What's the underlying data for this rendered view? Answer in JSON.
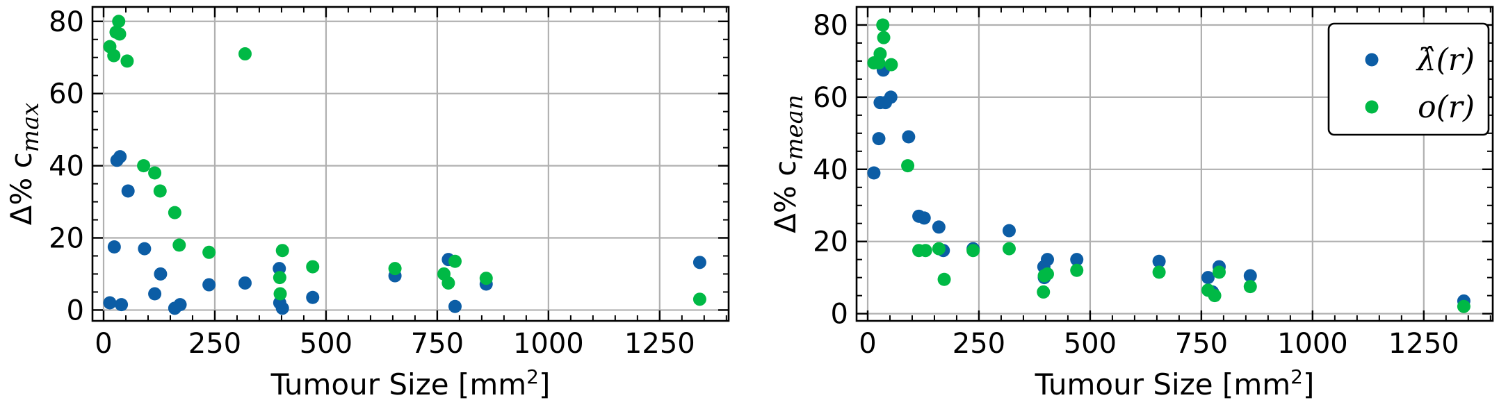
{
  "chart_data": [
    {
      "type": "scatter",
      "xlabel": "Tumour Size [mm",
      "xlabel_sup": "2",
      "xlabel_end": "]",
      "ylabel": "Δ% c",
      "ylabel_sub": "max",
      "xlim": [
        -25,
        1405
      ],
      "ylim": [
        -3,
        84
      ],
      "xticks": [
        0,
        250,
        500,
        750,
        1000,
        1250
      ],
      "yticks": [
        0,
        20,
        40,
        60,
        80
      ],
      "grid": true,
      "legend": null,
      "series": [
        {
          "color": "#0c5da5",
          "points": [
            [
              14,
              2
            ],
            [
              24,
              17.5
            ],
            [
              30,
              41.5
            ],
            [
              37,
              42.5
            ],
            [
              40,
              1.5
            ],
            [
              55,
              33
            ],
            [
              92,
              17
            ],
            [
              115,
              4.5
            ],
            [
              128,
              10
            ],
            [
              160,
              0.5
            ],
            [
              172,
              1.5
            ],
            [
              237,
              7
            ],
            [
              318,
              7.5
            ],
            [
              395,
              11.5
            ],
            [
              396,
              2
            ],
            [
              402,
              0.5
            ],
            [
              470,
              3.5
            ],
            [
              655,
              9.5
            ],
            [
              775,
              14
            ],
            [
              790,
              1
            ],
            [
              860,
              7.2
            ],
            [
              1340,
              13.2
            ]
          ]
        },
        {
          "color": "#00b945",
          "points": [
            [
              14,
              73
            ],
            [
              23,
              70.5
            ],
            [
              28,
              77
            ],
            [
              34,
              80
            ],
            [
              36,
              76.5
            ],
            [
              53,
              69
            ],
            [
              90,
              40
            ],
            [
              115,
              38
            ],
            [
              127,
              33
            ],
            [
              160,
              27
            ],
            [
              170,
              18
            ],
            [
              237,
              16
            ],
            [
              318,
              71
            ],
            [
              396,
              9
            ],
            [
              397,
              4.5
            ],
            [
              402,
              16.5
            ],
            [
              470,
              12
            ],
            [
              655,
              11.5
            ],
            [
              765,
              10
            ],
            [
              775,
              7.5
            ],
            [
              790,
              13.5
            ],
            [
              860,
              8.8
            ],
            [
              1340,
              3
            ]
          ]
        }
      ]
    },
    {
      "type": "scatter",
      "xlabel": "Tumour Size [mm",
      "xlabel_sup": "2",
      "xlabel_end": "]",
      "ylabel": "Δ% c",
      "ylabel_sub": "mean",
      "xlim": [
        -25,
        1405
      ],
      "ylim": [
        -2,
        85
      ],
      "xticks": [
        0,
        250,
        500,
        750,
        1000,
        1250
      ],
      "yticks": [
        0,
        20,
        40,
        60,
        80
      ],
      "grid": true,
      "legend": "top-right",
      "series": [
        {
          "name": "λ̂(r)",
          "color": "#0c5da5",
          "points": [
            [
              14,
              39
            ],
            [
              25,
              48.5
            ],
            [
              28,
              58.5
            ],
            [
              35,
              67.5
            ],
            [
              40,
              58.5
            ],
            [
              52,
              60
            ],
            [
              92,
              49
            ],
            [
              115,
              27
            ],
            [
              127,
              26.5
            ],
            [
              160,
              24
            ],
            [
              170,
              17.5
            ],
            [
              237,
              18
            ],
            [
              318,
              23
            ],
            [
              396,
              13
            ],
            [
              397,
              10
            ],
            [
              404,
              15
            ],
            [
              470,
              15
            ],
            [
              655,
              14.5
            ],
            [
              765,
              10
            ],
            [
              775,
              6
            ],
            [
              790,
              13
            ],
            [
              860,
              10.5
            ],
            [
              1340,
              3.5
            ]
          ]
        },
        {
          "name": "o(r)",
          "color": "#00b945",
          "points": [
            [
              14,
              69.5
            ],
            [
              25,
              69.5
            ],
            [
              28,
              72
            ],
            [
              34,
              80
            ],
            [
              36,
              76.5
            ],
            [
              53,
              69
            ],
            [
              90,
              41
            ],
            [
              115,
              17.5
            ],
            [
              130,
              17.5
            ],
            [
              160,
              18
            ],
            [
              172,
              9.5
            ],
            [
              237,
              17.5
            ],
            [
              318,
              18
            ],
            [
              395,
              6
            ],
            [
              397,
              10.5
            ],
            [
              404,
              11
            ],
            [
              470,
              12
            ],
            [
              655,
              11.5
            ],
            [
              765,
              6.5
            ],
            [
              780,
              5
            ],
            [
              790,
              11.5
            ],
            [
              860,
              7.5
            ],
            [
              1340,
              2
            ]
          ]
        }
      ]
    }
  ]
}
